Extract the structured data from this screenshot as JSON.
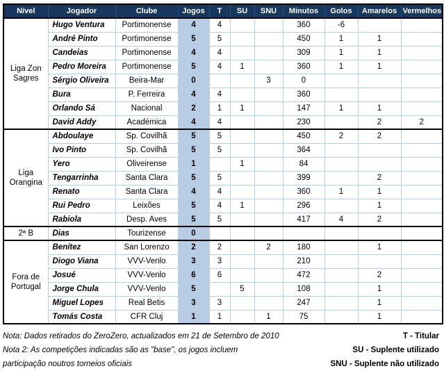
{
  "table": {
    "headers": [
      "Nível",
      "Jogador",
      "Clube",
      "Jogos",
      "T",
      "SU",
      "SNU",
      "Minutos",
      "Golos",
      "Amarelos",
      "Vermelhos"
    ],
    "groups": [
      {
        "level": "Liga Zon Sagres",
        "rows": [
          {
            "player": "Hugo Ventura",
            "club": "Portimonense",
            "jogos": "4",
            "t": "4",
            "su": "",
            "snu": "",
            "minutos": "360",
            "golos": "-6",
            "amarelos": "",
            "vermelhos": ""
          },
          {
            "player": "André Pinto",
            "club": "Portimonense",
            "jogos": "5",
            "t": "5",
            "su": "",
            "snu": "",
            "minutos": "450",
            "golos": "1",
            "amarelos": "1",
            "vermelhos": ""
          },
          {
            "player": "Candeias",
            "club": "Portimonense",
            "jogos": "4",
            "t": "4",
            "su": "",
            "snu": "",
            "minutos": "309",
            "golos": "1",
            "amarelos": "1",
            "vermelhos": ""
          },
          {
            "player": "Pedro Moreira",
            "club": "Portimonense",
            "jogos": "5",
            "t": "4",
            "su": "1",
            "snu": "",
            "minutos": "360",
            "golos": "1",
            "amarelos": "1",
            "vermelhos": ""
          },
          {
            "player": "Sérgio Oliveira",
            "club": "Beira-Mar",
            "jogos": "0",
            "t": "",
            "su": "",
            "snu": "3",
            "minutos": "0",
            "golos": "",
            "amarelos": "",
            "vermelhos": ""
          },
          {
            "player": "Bura",
            "club": "P. Ferreira",
            "jogos": "4",
            "t": "4",
            "su": "",
            "snu": "",
            "minutos": "360",
            "golos": "",
            "amarelos": "",
            "vermelhos": ""
          },
          {
            "player": "Orlando Sá",
            "club": "Nacional",
            "jogos": "2",
            "t": "1",
            "su": "1",
            "snu": "",
            "minutos": "147",
            "golos": "1",
            "amarelos": "1",
            "vermelhos": ""
          },
          {
            "player": "David Addy",
            "club": "Académica",
            "jogos": "4",
            "t": "4",
            "su": "",
            "snu": "",
            "minutos": "230",
            "golos": "",
            "amarelos": "2",
            "vermelhos": "2"
          }
        ]
      },
      {
        "level": "Liga Orangina",
        "rows": [
          {
            "player": "Abdoulaye",
            "club": "Sp. Covilhã",
            "jogos": "5",
            "t": "5",
            "su": "",
            "snu": "",
            "minutos": "450",
            "golos": "2",
            "amarelos": "2",
            "vermelhos": ""
          },
          {
            "player": "Ivo Pinto",
            "club": "Sp. Covilhã",
            "jogos": "5",
            "t": "5",
            "su": "",
            "snu": "",
            "minutos": "364",
            "golos": "",
            "amarelos": "",
            "vermelhos": ""
          },
          {
            "player": "Yero",
            "club": "Oliveirense",
            "jogos": "1",
            "t": "",
            "su": "1",
            "snu": "",
            "minutos": "84",
            "golos": "",
            "amarelos": "",
            "vermelhos": ""
          },
          {
            "player": "Tengarrinha",
            "club": "Santa Clara",
            "jogos": "5",
            "t": "5",
            "su": "",
            "snu": "",
            "minutos": "399",
            "golos": "",
            "amarelos": "2",
            "vermelhos": ""
          },
          {
            "player": "Renato",
            "club": "Santa Clara",
            "jogos": "4",
            "t": "4",
            "su": "",
            "snu": "",
            "minutos": "360",
            "golos": "1",
            "amarelos": "1",
            "vermelhos": ""
          },
          {
            "player": "Rui Pedro",
            "club": "Leixões",
            "jogos": "5",
            "t": "4",
            "su": "1",
            "snu": "",
            "minutos": "296",
            "golos": "",
            "amarelos": "1",
            "vermelhos": ""
          },
          {
            "player": "Rabiola",
            "club": "Desp. Aves",
            "jogos": "5",
            "t": "5",
            "su": "",
            "snu": "",
            "minutos": "417",
            "golos": "4",
            "amarelos": "2",
            "vermelhos": ""
          }
        ]
      },
      {
        "level": "2ª B",
        "rows": [
          {
            "player": "Dias",
            "club": "Tourizense",
            "jogos": "0",
            "t": "",
            "su": "",
            "snu": "",
            "minutos": "",
            "golos": "",
            "amarelos": "",
            "vermelhos": ""
          }
        ]
      },
      {
        "level": "Fora de Portugal",
        "rows": [
          {
            "player": "Benítez",
            "club": "San Lorenzo",
            "jogos": "2",
            "t": "2",
            "su": "",
            "snu": "2",
            "minutos": "180",
            "golos": "",
            "amarelos": "1",
            "vermelhos": ""
          },
          {
            "player": "Diogo Viana",
            "club": "VVV-Venlo",
            "jogos": "3",
            "t": "3",
            "su": "",
            "snu": "",
            "minutos": "210",
            "golos": "",
            "amarelos": "",
            "vermelhos": ""
          },
          {
            "player": "Josué",
            "club": "VVV-Venlo",
            "jogos": "6",
            "t": "6",
            "su": "",
            "snu": "",
            "minutos": "472",
            "golos": "",
            "amarelos": "2",
            "vermelhos": ""
          },
          {
            "player": "Jorge Chula",
            "club": "VVV-Venlo",
            "jogos": "5",
            "t": "",
            "su": "5",
            "snu": "",
            "minutos": "108",
            "golos": "",
            "amarelos": "1",
            "vermelhos": ""
          },
          {
            "player": "Miguel Lopes",
            "club": "Real Betis",
            "jogos": "3",
            "t": "3",
            "su": "",
            "snu": "",
            "minutos": "247",
            "golos": "",
            "amarelos": "1",
            "vermelhos": ""
          },
          {
            "player": "Tomás Costa",
            "club": "CFR Cluj",
            "jogos": "1",
            "t": "1",
            "su": "",
            "snu": "1",
            "minutos": "75",
            "golos": "",
            "amarelos": "1",
            "vermelhos": ""
          }
        ]
      }
    ]
  },
  "notes": {
    "note1": "Nota: Dados retirados do ZeroZero, actualizados em 21 de Setembro de 2010",
    "note2_line1": "Nota 2: As competições indicadas são as \"base\", os jogos incluem",
    "note2_line2": "participação noutros torneios oficiais"
  },
  "legend": [
    "T - Titular",
    "SU - Suplente utilizado",
    "SNU - Suplente não utilizado"
  ]
}
